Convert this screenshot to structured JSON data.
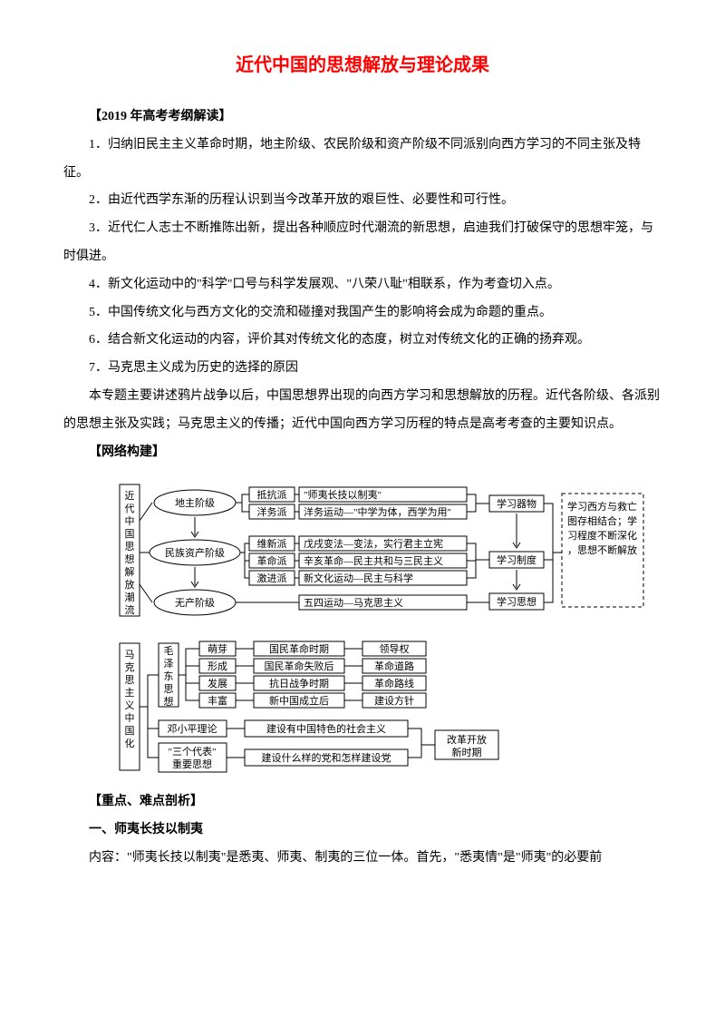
{
  "title": "近代中国的思想解放与理论成果",
  "title_color": "#ff0000",
  "section1_header": "【2019 年高考考纲解读】",
  "points": [
    "1．归纳旧民主主义革命时期，地主阶级、农民阶级和资产阶级不同派别向西方学习的不同主张及特征。",
    "2．由近代西学东渐的历程认识到当今改革开放的艰巨性、必要性和可行性。",
    "3．近代仁人志士不断推陈出新，提出各种顺应时代潮流的新思想，启迪我们打破保守的思想牢笼，与时俱进。",
    "4．新文化运动中的\"科学\"口号与科学发展观、\"八荣八耻\"相联系，作为考查切入点。",
    "5．中国传统文化与西方文化的交流和碰撞对我国产生的影响将会成为命题的重点。",
    "6．结合新文化运动的内容，评价其对传统文化的态度，树立对传统文化的正确的扬弃观。",
    "7．马克思主义成为历史的选择的原因"
  ],
  "summary": "本专题主要讲述鸦片战争以后，中国思想界出现的向西方学习和思想解放的历程。近代各阶级、各派别的思想主张及实践；马克思主义的传播；近代中国向西方学习历程的特点是高考考查的主要知识点。",
  "section2_header": "【网络构建】",
  "diagram1": {
    "root": "近代中国思想解放潮流",
    "classes": [
      "地主阶级",
      "民族资产阶级",
      "无产阶级"
    ],
    "factions": [
      "抵抗派",
      "洋务派",
      "维新派",
      "革命派",
      "激进派"
    ],
    "actions": [
      "\"师夷长技以制夷\"",
      "洋务运动—\"中学为体，西学为用\"",
      "戊戌变法—变法，实行君主立宪",
      "辛亥革命—民主共和与三民主义",
      "新文化运动—民主与科学",
      "五四运动—马克思主义"
    ],
    "learns": [
      "学习器物",
      "学习制度",
      "学习思想"
    ],
    "sidebar": "学习西方与救亡图存相结合；学习程度不断深化，思想不断解放"
  },
  "diagram2": {
    "root": "马克思主义中国化",
    "branch1": "毛泽东思想",
    "branch2": "邓小平理论",
    "branch3": "\"三个代表\"重要思想",
    "stages": [
      "萌芽",
      "形成",
      "发展",
      "丰富"
    ],
    "events": [
      "国民革命时期",
      "国民革命失败后",
      "抗日战争时期",
      "新中国成立后"
    ],
    "results": [
      "领导权",
      "革命道路",
      "革命路线",
      "建设方针"
    ],
    "deng": "建设有中国特色的社会主义",
    "sange": "建设什么样的党和怎样建设党",
    "era": "改革开放新时期"
  },
  "section3_header": "【重点、难点剖析】",
  "section3_sub": "一、师夷长技以制夷",
  "section3_body": "内容：\"师夷长技以制夷\"是悉夷、师夷、制夷的三位一体。首先，\"悉夷情\"是\"师夷\"的必要前"
}
